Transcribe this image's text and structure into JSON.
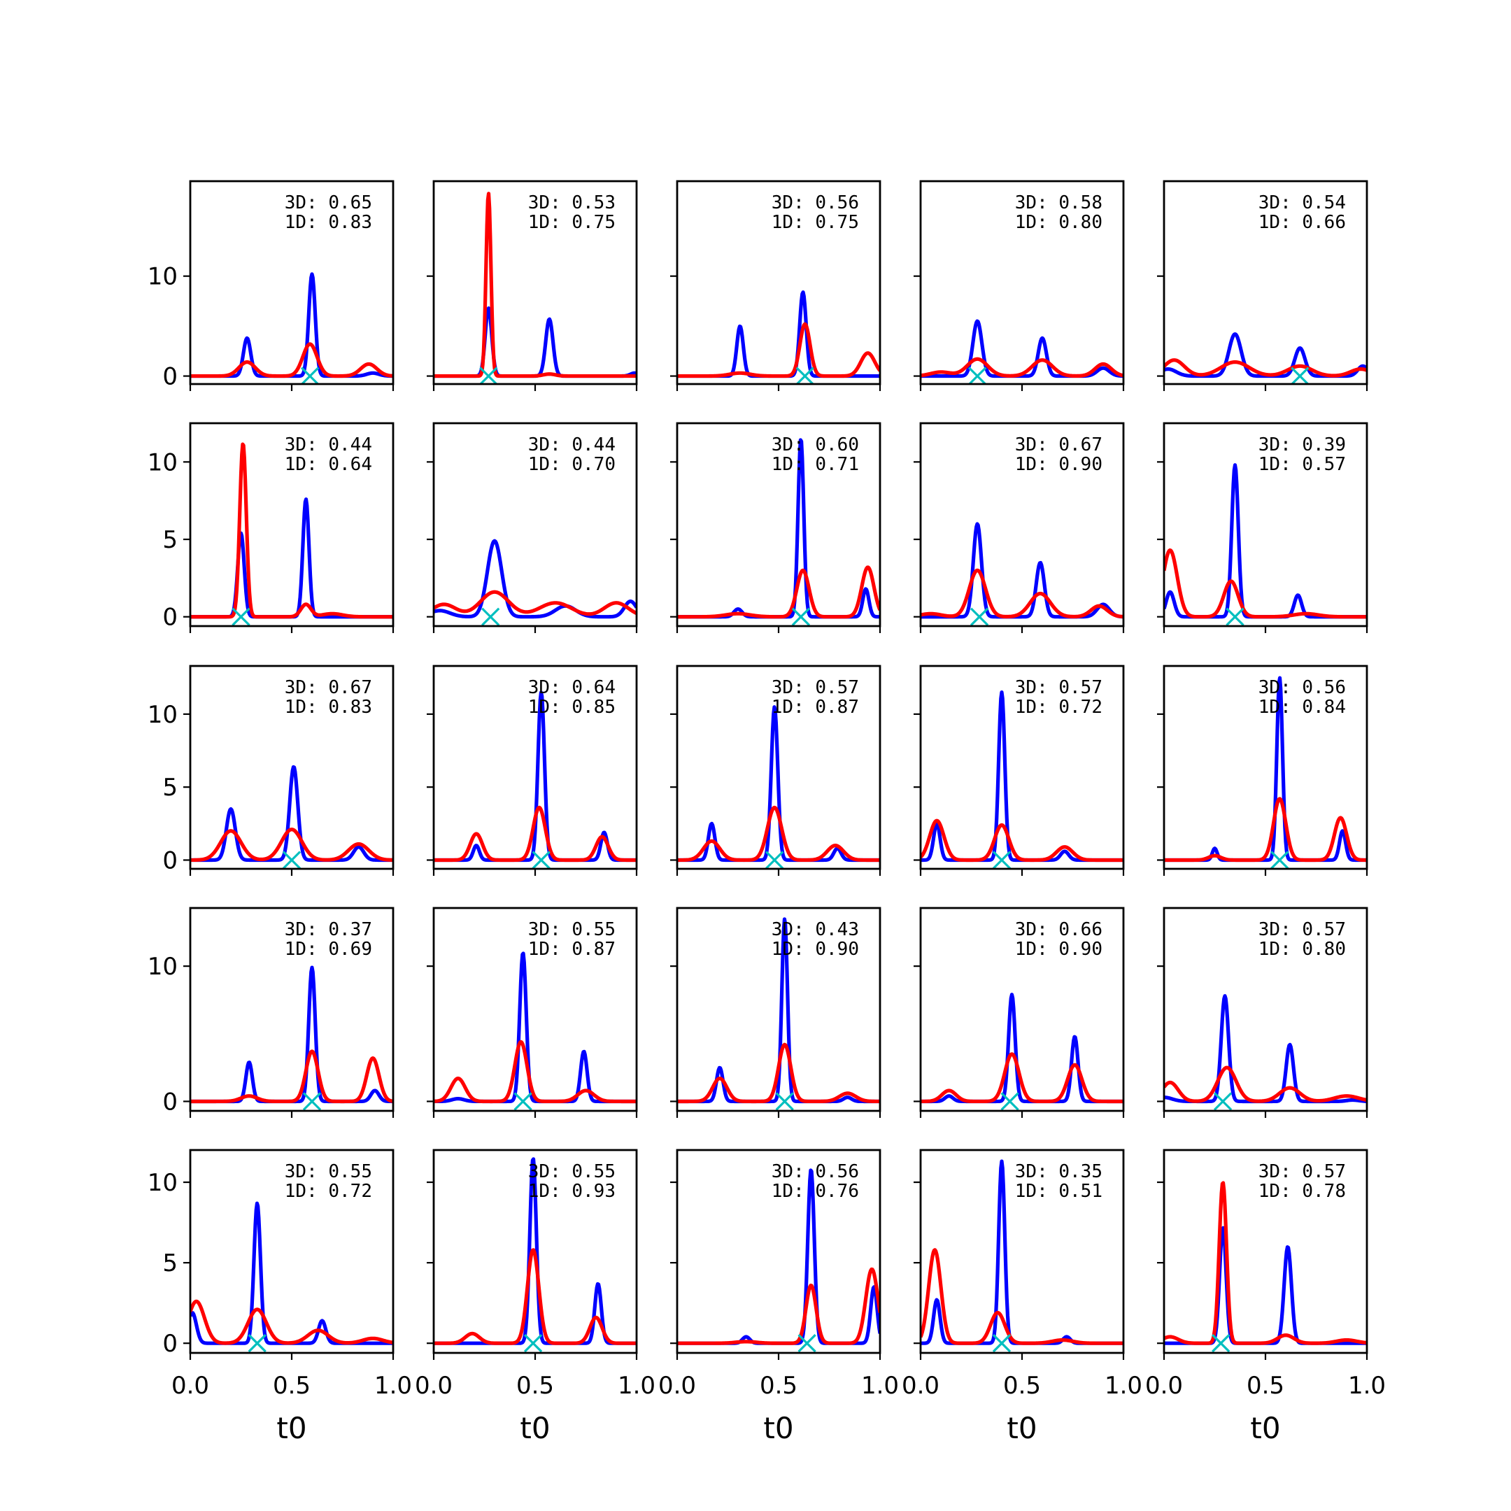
{
  "chart_data": {
    "type": "line",
    "layout": "grid 5x5",
    "xlabel": "t0",
    "x_ticks": [
      "0.0",
      "0.5",
      "1.0"
    ],
    "xlim": [
      0,
      1
    ],
    "colors": {
      "blue_series": "#0000ff",
      "red_series": "#ff0000",
      "marker": "#00bfbf"
    },
    "rows": [
      {
        "ylim": [
          -0.8,
          19.5
        ],
        "y_ticks": [
          {
            "v": 0,
            "label": "0"
          },
          {
            "v": 10,
            "label": "10"
          }
        ]
      },
      {
        "ylim": [
          -0.6,
          12.5
        ],
        "y_ticks": [
          {
            "v": 0,
            "label": "0"
          },
          {
            "v": 5,
            "label": "5"
          },
          {
            "v": 10,
            "label": "10"
          }
        ]
      },
      {
        "ylim": [
          -0.6,
          13.3
        ],
        "y_ticks": [
          {
            "v": 0,
            "label": "0"
          },
          {
            "v": 5,
            "label": "5"
          },
          {
            "v": 10,
            "label": "10"
          }
        ]
      },
      {
        "ylim": [
          -0.7,
          14.3
        ],
        "y_ticks": [
          {
            "v": 0,
            "label": "0"
          },
          {
            "v": 10,
            "label": "10"
          }
        ]
      },
      {
        "ylim": [
          -0.6,
          12.0
        ],
        "y_ticks": [
          {
            "v": 0,
            "label": "0"
          },
          {
            "v": 5,
            "label": "5"
          },
          {
            "v": 10,
            "label": "10"
          }
        ]
      }
    ],
    "panels": [
      {
        "row": 0,
        "col": 0,
        "ann3d": "3D: 0.65",
        "ann1d": "1D: 0.83",
        "marker": 0.59,
        "blue": [
          [
            0.28,
            3.8,
            0.018
          ],
          [
            0.6,
            10.2,
            0.016
          ],
          [
            0.9,
            0.3,
            0.03
          ]
        ],
        "red": [
          [
            0.28,
            1.4,
            0.04
          ],
          [
            0.59,
            3.2,
            0.035
          ],
          [
            0.88,
            1.2,
            0.04
          ]
        ]
      },
      {
        "row": 0,
        "col": 1,
        "ann3d": "3D: 0.53",
        "ann1d": "1D: 0.75",
        "marker": 0.27,
        "blue": [
          [
            0.27,
            6.8,
            0.016
          ],
          [
            0.57,
            5.7,
            0.018
          ],
          [
            0.99,
            0.3,
            0.02
          ]
        ],
        "red": [
          [
            0.27,
            18.3,
            0.012
          ],
          [
            0.57,
            0.2,
            0.03
          ]
        ]
      },
      {
        "row": 0,
        "col": 2,
        "ann3d": "3D: 0.56",
        "ann1d": "1D: 0.75",
        "marker": 0.63,
        "blue": [
          [
            0.31,
            5.0,
            0.016
          ],
          [
            0.62,
            8.4,
            0.016
          ]
        ],
        "red": [
          [
            0.31,
            0.3,
            0.05
          ],
          [
            0.63,
            5.2,
            0.025
          ],
          [
            0.94,
            2.3,
            0.035
          ]
        ]
      },
      {
        "row": 0,
        "col": 3,
        "ann3d": "3D: 0.58",
        "ann1d": "1D: 0.80",
        "marker": 0.28,
        "blue": [
          [
            0.28,
            5.5,
            0.022
          ],
          [
            0.6,
            3.8,
            0.02
          ],
          [
            0.9,
            0.8,
            0.03
          ]
        ],
        "red": [
          [
            0.28,
            1.7,
            0.05
          ],
          [
            0.6,
            1.6,
            0.05
          ],
          [
            0.9,
            1.2,
            0.04
          ],
          [
            0.1,
            0.4,
            0.05
          ]
        ]
      },
      {
        "row": 0,
        "col": 4,
        "ann3d": "3D: 0.54",
        "ann1d": "1D: 0.66",
        "marker": 0.67,
        "blue": [
          [
            0.02,
            0.7,
            0.04
          ],
          [
            0.35,
            4.2,
            0.03
          ],
          [
            0.67,
            2.8,
            0.025
          ],
          [
            0.98,
            1.0,
            0.025
          ]
        ],
        "red": [
          [
            0.05,
            1.6,
            0.05
          ],
          [
            0.35,
            1.4,
            0.07
          ],
          [
            0.67,
            1.0,
            0.06
          ],
          [
            0.97,
            0.7,
            0.05
          ]
        ]
      },
      {
        "row": 1,
        "col": 0,
        "ann3d": "3D: 0.44",
        "ann1d": "1D: 0.64",
        "marker": 0.25,
        "blue": [
          [
            0.25,
            5.4,
            0.016
          ],
          [
            0.57,
            7.6,
            0.015
          ]
        ],
        "red": [
          [
            0.26,
            11.2,
            0.016
          ],
          [
            0.57,
            0.8,
            0.025
          ],
          [
            0.7,
            0.2,
            0.05
          ]
        ]
      },
      {
        "row": 1,
        "col": 1,
        "ann3d": "3D: 0.44",
        "ann1d": "1D: 0.70",
        "marker": 0.28,
        "blue": [
          [
            0.03,
            0.4,
            0.05
          ],
          [
            0.3,
            4.9,
            0.035
          ],
          [
            0.65,
            0.7,
            0.05
          ],
          [
            0.97,
            1.0,
            0.03
          ]
        ],
        "red": [
          [
            0.05,
            0.8,
            0.06
          ],
          [
            0.3,
            1.6,
            0.07
          ],
          [
            0.6,
            0.9,
            0.08
          ],
          [
            0.9,
            0.9,
            0.06
          ]
        ]
      },
      {
        "row": 1,
        "col": 2,
        "ann3d": "3D: 0.60",
        "ann1d": "1D: 0.71",
        "marker": 0.61,
        "blue": [
          [
            0.3,
            0.5,
            0.02
          ],
          [
            0.61,
            11.5,
            0.014
          ],
          [
            0.93,
            1.8,
            0.015
          ]
        ],
        "red": [
          [
            0.3,
            0.2,
            0.06
          ],
          [
            0.62,
            3.0,
            0.03
          ],
          [
            0.94,
            3.2,
            0.03
          ]
        ]
      },
      {
        "row": 1,
        "col": 3,
        "ann3d": "3D: 0.67",
        "ann1d": "1D: 0.90",
        "marker": 0.29,
        "blue": [
          [
            0.28,
            6.0,
            0.02
          ],
          [
            0.59,
            3.5,
            0.02
          ],
          [
            0.9,
            0.8,
            0.03
          ]
        ],
        "red": [
          [
            0.28,
            3.0,
            0.04
          ],
          [
            0.59,
            1.5,
            0.05
          ],
          [
            0.88,
            0.7,
            0.04
          ],
          [
            0.05,
            0.2,
            0.05
          ]
        ]
      },
      {
        "row": 1,
        "col": 4,
        "ann3d": "3D: 0.39",
        "ann1d": "1D: 0.57",
        "marker": 0.35,
        "blue": [
          [
            0.03,
            1.6,
            0.02
          ],
          [
            0.35,
            9.8,
            0.016
          ],
          [
            0.66,
            1.4,
            0.018
          ]
        ],
        "red": [
          [
            0.03,
            4.3,
            0.035
          ],
          [
            0.33,
            2.3,
            0.035
          ],
          [
            0.7,
            0.2,
            0.06
          ]
        ]
      },
      {
        "row": 2,
        "col": 0,
        "ann3d": "3D: 0.67",
        "ann1d": "1D: 0.83",
        "marker": 0.5,
        "blue": [
          [
            0.2,
            3.5,
            0.022
          ],
          [
            0.51,
            6.4,
            0.02
          ],
          [
            0.83,
            0.9,
            0.025
          ]
        ],
        "red": [
          [
            0.2,
            2.0,
            0.05
          ],
          [
            0.5,
            2.1,
            0.05
          ],
          [
            0.83,
            1.1,
            0.05
          ]
        ]
      },
      {
        "row": 2,
        "col": 1,
        "ann3d": "3D: 0.64",
        "ann1d": "1D: 0.85",
        "marker": 0.53,
        "blue": [
          [
            0.21,
            1.0,
            0.015
          ],
          [
            0.53,
            11.5,
            0.016
          ],
          [
            0.84,
            1.9,
            0.016
          ]
        ],
        "red": [
          [
            0.21,
            1.8,
            0.03
          ],
          [
            0.52,
            3.6,
            0.03
          ],
          [
            0.83,
            1.6,
            0.03
          ]
        ]
      },
      {
        "row": 2,
        "col": 2,
        "ann3d": "3D: 0.57",
        "ann1d": "1D: 0.87",
        "marker": 0.48,
        "blue": [
          [
            0.17,
            2.5,
            0.016
          ],
          [
            0.48,
            10.5,
            0.016
          ],
          [
            0.79,
            0.8,
            0.018
          ]
        ],
        "red": [
          [
            0.17,
            1.3,
            0.04
          ],
          [
            0.48,
            3.6,
            0.035
          ],
          [
            0.78,
            1.0,
            0.04
          ]
        ]
      },
      {
        "row": 2,
        "col": 3,
        "ann3d": "3D: 0.57",
        "ann1d": "1D: 0.72",
        "marker": 0.4,
        "blue": [
          [
            0.08,
            2.5,
            0.016
          ],
          [
            0.4,
            11.5,
            0.015
          ],
          [
            0.71,
            0.6,
            0.02
          ]
        ],
        "red": [
          [
            0.08,
            2.7,
            0.035
          ],
          [
            0.4,
            2.4,
            0.035
          ],
          [
            0.71,
            0.9,
            0.04
          ]
        ]
      },
      {
        "row": 2,
        "col": 4,
        "ann3d": "3D: 0.56",
        "ann1d": "1D: 0.84",
        "marker": 0.57,
        "blue": [
          [
            0.25,
            0.8,
            0.012
          ],
          [
            0.57,
            12.5,
            0.014
          ],
          [
            0.88,
            2.0,
            0.015
          ]
        ],
        "red": [
          [
            0.25,
            0.3,
            0.03
          ],
          [
            0.57,
            4.2,
            0.03
          ],
          [
            0.87,
            2.9,
            0.03
          ]
        ]
      },
      {
        "row": 3,
        "col": 0,
        "ann3d": "3D: 0.37",
        "ann1d": "1D: 0.69",
        "marker": 0.6,
        "blue": [
          [
            0.29,
            2.9,
            0.016
          ],
          [
            0.6,
            9.9,
            0.016
          ],
          [
            0.91,
            0.8,
            0.02
          ]
        ],
        "red": [
          [
            0.29,
            0.4,
            0.04
          ],
          [
            0.6,
            3.7,
            0.03
          ],
          [
            0.9,
            3.2,
            0.03
          ]
        ]
      },
      {
        "row": 3,
        "col": 1,
        "ann3d": "3D: 0.55",
        "ann1d": "1D: 0.87",
        "marker": 0.44,
        "blue": [
          [
            0.12,
            0.2,
            0.03
          ],
          [
            0.44,
            11.0,
            0.016
          ],
          [
            0.74,
            3.7,
            0.016
          ]
        ],
        "red": [
          [
            0.12,
            1.7,
            0.035
          ],
          [
            0.43,
            4.4,
            0.03
          ],
          [
            0.75,
            0.8,
            0.04
          ]
        ]
      },
      {
        "row": 3,
        "col": 2,
        "ann3d": "3D: 0.43",
        "ann1d": "1D: 0.90",
        "marker": 0.53,
        "blue": [
          [
            0.21,
            2.5,
            0.016
          ],
          [
            0.53,
            13.5,
            0.014
          ],
          [
            0.84,
            0.3,
            0.02
          ]
        ],
        "red": [
          [
            0.21,
            1.7,
            0.035
          ],
          [
            0.53,
            4.2,
            0.03
          ],
          [
            0.84,
            0.6,
            0.04
          ]
        ]
      },
      {
        "row": 3,
        "col": 3,
        "ann3d": "3D: 0.66",
        "ann1d": "1D: 0.90",
        "marker": 0.44,
        "blue": [
          [
            0.14,
            0.4,
            0.02
          ],
          [
            0.45,
            7.9,
            0.016
          ],
          [
            0.76,
            4.8,
            0.016
          ]
        ],
        "red": [
          [
            0.14,
            0.8,
            0.035
          ],
          [
            0.45,
            3.5,
            0.035
          ],
          [
            0.76,
            2.7,
            0.035
          ]
        ]
      },
      {
        "row": 3,
        "col": 4,
        "ann3d": "3D: 0.57",
        "ann1d": "1D: 0.80",
        "marker": 0.29,
        "blue": [
          [
            0.0,
            0.3,
            0.04
          ],
          [
            0.3,
            7.8,
            0.018
          ],
          [
            0.62,
            4.2,
            0.018
          ],
          [
            0.93,
            0.1,
            0.03
          ]
        ],
        "red": [
          [
            0.03,
            1.4,
            0.04
          ],
          [
            0.31,
            2.5,
            0.045
          ],
          [
            0.62,
            1.0,
            0.05
          ],
          [
            0.9,
            0.4,
            0.06
          ]
        ]
      },
      {
        "row": 4,
        "col": 0,
        "ann3d": "3D: 0.55",
        "ann1d": "1D: 0.72",
        "marker": 0.33,
        "blue": [
          [
            0.01,
            1.9,
            0.02
          ],
          [
            0.33,
            8.7,
            0.016
          ],
          [
            0.65,
            1.4,
            0.018
          ]
        ],
        "red": [
          [
            0.03,
            2.6,
            0.04
          ],
          [
            0.33,
            2.1,
            0.045
          ],
          [
            0.63,
            0.8,
            0.05
          ],
          [
            0.9,
            0.3,
            0.05
          ]
        ]
      },
      {
        "row": 4,
        "col": 1,
        "ann3d": "3D: 0.55",
        "ann1d": "1D: 0.93",
        "marker": 0.49,
        "blue": [
          [
            0.49,
            11.5,
            0.016
          ],
          [
            0.81,
            3.7,
            0.016
          ]
        ],
        "red": [
          [
            0.19,
            0.6,
            0.035
          ],
          [
            0.49,
            5.8,
            0.028
          ],
          [
            0.8,
            1.6,
            0.03
          ]
        ]
      },
      {
        "row": 4,
        "col": 2,
        "ann3d": "3D: 0.56",
        "ann1d": "1D: 0.76",
        "marker": 0.64,
        "blue": [
          [
            0.34,
            0.4,
            0.018
          ],
          [
            0.66,
            10.8,
            0.016
          ],
          [
            0.97,
            3.5,
            0.016
          ]
        ],
        "red": [
          [
            0.34,
            0.1,
            0.05
          ],
          [
            0.66,
            3.6,
            0.025
          ],
          [
            0.96,
            4.6,
            0.03
          ]
        ]
      },
      {
        "row": 4,
        "col": 3,
        "ann3d": "3D: 0.35",
        "ann1d": "1D: 0.51",
        "marker": 0.4,
        "blue": [
          [
            0.08,
            2.7,
            0.016
          ],
          [
            0.4,
            11.3,
            0.015
          ],
          [
            0.72,
            0.4,
            0.018
          ]
        ],
        "red": [
          [
            0.07,
            5.8,
            0.03
          ],
          [
            0.38,
            1.9,
            0.035
          ],
          [
            0.7,
            0.2,
            0.05
          ]
        ]
      },
      {
        "row": 4,
        "col": 4,
        "ann3d": "3D: 0.57",
        "ann1d": "1D: 0.78",
        "marker": 0.28,
        "blue": [
          [
            0.29,
            7.2,
            0.016
          ],
          [
            0.61,
            6.0,
            0.018
          ]
        ],
        "red": [
          [
            0.03,
            0.4,
            0.04
          ],
          [
            0.29,
            10.0,
            0.018
          ],
          [
            0.6,
            0.5,
            0.04
          ],
          [
            0.9,
            0.2,
            0.05
          ]
        ]
      }
    ]
  }
}
